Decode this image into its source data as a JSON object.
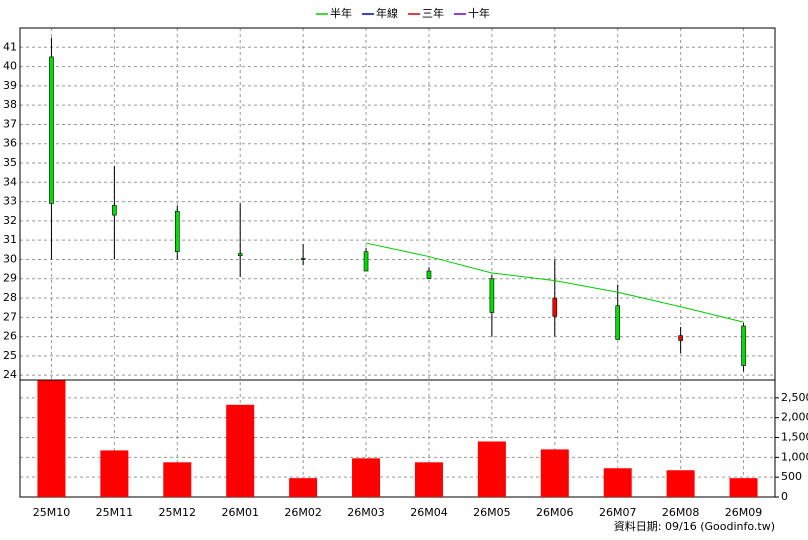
{
  "chart_data": {
    "type": "candlestick",
    "categories": [
      "25M10",
      "25M11",
      "25M12",
      "26M01",
      "26M02",
      "26M03",
      "26M04",
      "26M05",
      "26M06",
      "26M07",
      "26M08",
      "26M09"
    ],
    "open": [
      40.5,
      32.8,
      32.5,
      30.3,
      30.05,
      30.4,
      29.4,
      29.0,
      27.05,
      27.6,
      25.8,
      26.55
    ],
    "high": [
      41.5,
      34.85,
      32.8,
      32.9,
      30.8,
      30.6,
      29.6,
      29.2,
      30.0,
      28.7,
      26.5,
      26.7
    ],
    "low": [
      30.0,
      30.0,
      30.0,
      29.1,
      29.7,
      29.4,
      29.0,
      26.0,
      26.0,
      25.85,
      25.15,
      24.2
    ],
    "close": [
      32.9,
      32.3,
      30.4,
      30.2,
      30.0,
      29.4,
      29.0,
      27.25,
      28.0,
      25.85,
      26.05,
      24.5
    ],
    "up_color": "#ff0000",
    "down_color": "#00e000",
    "series": [
      {
        "name": "半年",
        "color": "#00cc00",
        "values": [
          null,
          null,
          null,
          null,
          null,
          30.85,
          30.15,
          29.3,
          28.9,
          28.3,
          27.55,
          26.75
        ]
      },
      {
        "name": "年線",
        "color": "#0000cc",
        "values": [
          null,
          null,
          null,
          null,
          null,
          null,
          null,
          null,
          null,
          null,
          null,
          null
        ]
      },
      {
        "name": "三年",
        "color": "#cc0000",
        "values": [
          null,
          null,
          null,
          null,
          null,
          null,
          null,
          null,
          null,
          null,
          null,
          null
        ]
      },
      {
        "name": "十年",
        "color": "#6600cc",
        "values": [
          null,
          null,
          null,
          null,
          null,
          null,
          null,
          null,
          null,
          null,
          null,
          null
        ]
      }
    ],
    "volume": {
      "color": "#ff0000",
      "values": [
        2940,
        1175,
        875,
        2325,
        475,
        975,
        875,
        1400,
        1200,
        725,
        675,
        475
      ]
    },
    "ylim": [
      23.75,
      42
    ],
    "yticks": [
      24,
      25,
      26,
      27,
      28,
      29,
      30,
      31,
      32,
      33,
      34,
      35,
      36,
      37,
      38,
      39,
      40,
      41
    ],
    "y2lim": [
      0,
      2950
    ],
    "y2ticks": [
      0,
      500,
      {
        "value": 1000,
        "label": "1,000"
      },
      {
        "value": 1500,
        "label": "1,500"
      },
      {
        "value": 2000,
        "label": "2,000"
      },
      {
        "value": 2500,
        "label": "2,500"
      }
    ],
    "grid": true,
    "note": "資料日期: 09/16 (Goodinfo.tw)"
  }
}
